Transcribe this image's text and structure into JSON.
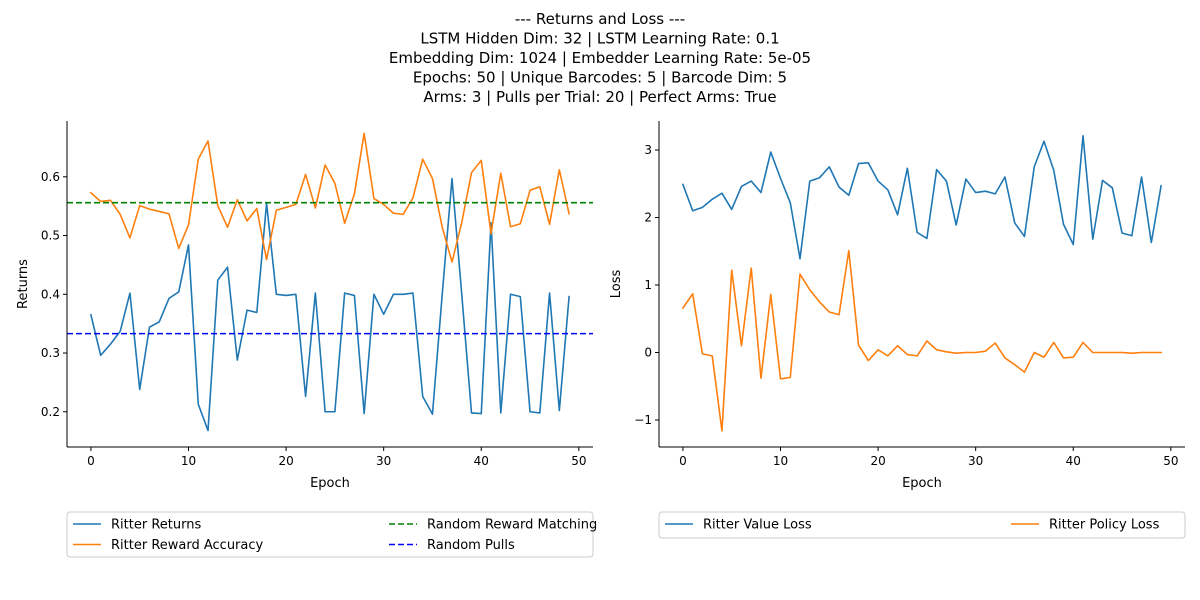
{
  "title_lines": [
    "--- Returns and Loss ---",
    "LSTM Hidden Dim: 32 | LSTM Learning Rate: 0.1",
    "Embedding Dim: 1024 | Embedder Learning Rate: 5e-05",
    "Epochs: 50 | Unique Barcodes: 5 | Barcode Dim: 5",
    "Arms: 3 | Pulls per Trial: 20 | Perfect Arms: True"
  ],
  "chart_data": [
    {
      "type": "line",
      "xlabel": "Epoch",
      "ylabel": "Returns",
      "xlim": [
        -2.45,
        51.45
      ],
      "ylim": [
        0.14,
        0.695
      ],
      "xticks": [
        0,
        10,
        20,
        30,
        40,
        50
      ],
      "yticks": [
        0.2,
        0.3,
        0.4,
        0.5,
        0.6
      ],
      "ytick_labels": [
        "0.2",
        "0.3",
        "0.4",
        "0.5",
        "0.6"
      ],
      "legend": {
        "placement": "below",
        "columns": 2
      },
      "series": [
        {
          "name": "Ritter Returns",
          "color": "#1f77b4",
          "dash": "solid",
          "x": [
            0,
            1,
            2,
            3,
            4,
            5,
            6,
            7,
            8,
            9,
            10,
            11,
            12,
            13,
            14,
            15,
            16,
            17,
            18,
            19,
            20,
            21,
            22,
            23,
            24,
            25,
            26,
            27,
            28,
            29,
            30,
            31,
            32,
            33,
            34,
            35,
            36,
            37,
            38,
            39,
            40,
            41,
            42,
            43,
            44,
            45,
            46,
            47,
            48,
            49
          ],
          "values": [
            0.365,
            0.296,
            0.315,
            0.337,
            0.402,
            0.238,
            0.344,
            0.353,
            0.393,
            0.404,
            0.484,
            0.213,
            0.168,
            0.424,
            0.446,
            0.288,
            0.373,
            0.369,
            0.555,
            0.4,
            0.398,
            0.4,
            0.226,
            0.402,
            0.2,
            0.2,
            0.402,
            0.398,
            0.197,
            0.4,
            0.366,
            0.4,
            0.4,
            0.402,
            0.226,
            0.196,
            0.4,
            0.597,
            0.4,
            0.198,
            0.197,
            0.522,
            0.198,
            0.4,
            0.396,
            0.2,
            0.198,
            0.402,
            0.202,
            0.396
          ]
        },
        {
          "name": "Ritter Reward Accuracy",
          "color": "#ff7f0e",
          "dash": "solid",
          "x": [
            0,
            1,
            2,
            3,
            4,
            5,
            6,
            7,
            8,
            9,
            10,
            11,
            12,
            13,
            14,
            15,
            16,
            17,
            18,
            19,
            20,
            21,
            22,
            23,
            24,
            25,
            26,
            27,
            28,
            29,
            30,
            31,
            32,
            33,
            34,
            35,
            36,
            37,
            38,
            39,
            40,
            41,
            42,
            43,
            44,
            45,
            46,
            47,
            48,
            49
          ],
          "values": [
            0.573,
            0.558,
            0.56,
            0.536,
            0.496,
            0.551,
            0.545,
            0.541,
            0.537,
            0.478,
            0.518,
            0.63,
            0.661,
            0.551,
            0.514,
            0.561,
            0.525,
            0.546,
            0.459,
            0.543,
            0.548,
            0.553,
            0.604,
            0.547,
            0.62,
            0.589,
            0.521,
            0.571,
            0.674,
            0.563,
            0.553,
            0.538,
            0.536,
            0.564,
            0.63,
            0.597,
            0.514,
            0.455,
            0.522,
            0.607,
            0.628,
            0.503,
            0.606,
            0.515,
            0.52,
            0.577,
            0.583,
            0.519,
            0.612,
            0.537
          ]
        },
        {
          "name": "Random Reward Matching",
          "color": "#008000",
          "dash": "dashed",
          "constant": 0.556
        },
        {
          "name": "Random Pulls",
          "color": "#0000ff",
          "dash": "dashed",
          "constant": 0.333
        }
      ]
    },
    {
      "type": "line",
      "xlabel": "Epoch",
      "ylabel": "Loss",
      "xlim": [
        -2.45,
        51.45
      ],
      "ylim": [
        -1.4,
        3.43
      ],
      "xticks": [
        0,
        10,
        20,
        30,
        40,
        50
      ],
      "yticks": [
        -1,
        0,
        1,
        2,
        3
      ],
      "ytick_labels": [
        "−1",
        "0",
        "1",
        "2",
        "3"
      ],
      "legend": {
        "placement": "below",
        "columns": 2
      },
      "series": [
        {
          "name": "Ritter Value Loss",
          "color": "#1f77b4",
          "dash": "solid",
          "x": [
            0,
            1,
            2,
            3,
            4,
            5,
            6,
            7,
            8,
            9,
            10,
            11,
            12,
            13,
            14,
            15,
            16,
            17,
            18,
            19,
            20,
            21,
            22,
            23,
            24,
            25,
            26,
            27,
            28,
            29,
            30,
            31,
            32,
            33,
            34,
            35,
            36,
            37,
            38,
            39,
            40,
            41,
            42,
            43,
            44,
            45,
            46,
            47,
            48,
            49
          ],
          "values": [
            2.49,
            2.1,
            2.15,
            2.27,
            2.36,
            2.12,
            2.46,
            2.54,
            2.37,
            2.97,
            2.58,
            2.22,
            1.39,
            2.54,
            2.59,
            2.75,
            2.45,
            2.33,
            2.8,
            2.81,
            2.54,
            2.41,
            2.04,
            2.73,
            1.78,
            1.69,
            2.71,
            2.54,
            1.89,
            2.57,
            2.37,
            2.39,
            2.35,
            2.6,
            1.92,
            1.72,
            2.75,
            3.13,
            2.7,
            1.9,
            1.6,
            3.21,
            1.68,
            2.55,
            2.44,
            1.77,
            1.73,
            2.6,
            1.63,
            2.47
          ]
        },
        {
          "name": "Ritter Policy Loss",
          "color": "#ff7f0e",
          "dash": "solid",
          "x": [
            0,
            1,
            2,
            3,
            4,
            5,
            6,
            7,
            8,
            9,
            10,
            11,
            12,
            13,
            14,
            15,
            16,
            17,
            18,
            19,
            20,
            21,
            22,
            23,
            24,
            25,
            26,
            27,
            28,
            29,
            30,
            31,
            32,
            33,
            34,
            35,
            36,
            37,
            38,
            39,
            40,
            41,
            42,
            43,
            44,
            45,
            46,
            47,
            48,
            49
          ],
          "values": [
            0.66,
            0.87,
            -0.02,
            -0.05,
            -1.16,
            1.22,
            0.1,
            1.25,
            -0.38,
            0.86,
            -0.39,
            -0.37,
            1.16,
            0.93,
            0.75,
            0.6,
            0.56,
            1.51,
            0.11,
            -0.12,
            0.04,
            -0.05,
            0.1,
            -0.03,
            -0.05,
            0.17,
            0.04,
            0.01,
            -0.01,
            0.0,
            0.0,
            0.02,
            0.14,
            -0.08,
            -0.18,
            -0.29,
            0.0,
            -0.07,
            0.15,
            -0.08,
            -0.07,
            0.15,
            0.0,
            0.0,
            0.0,
            0.0,
            -0.01,
            0.0,
            0.0,
            0.0
          ]
        }
      ]
    }
  ]
}
